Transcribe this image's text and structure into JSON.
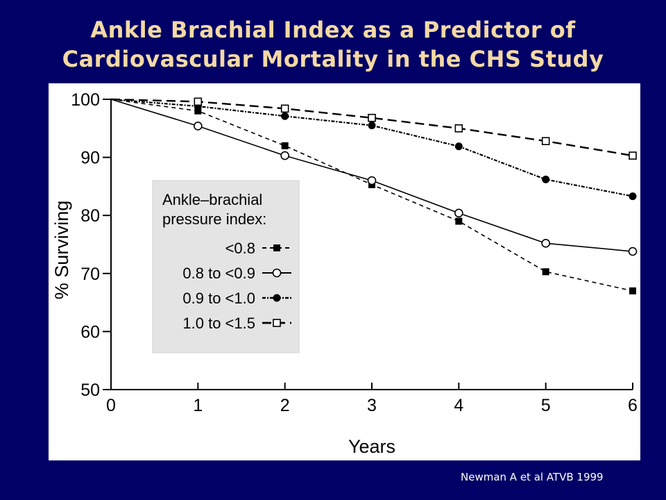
{
  "slide": {
    "title_line1": "Ankle Brachial Index as a Predictor of",
    "title_line2": "Cardiovascular Mortality in the CHS Study",
    "citation": "Newman A et al ATVB 1999",
    "background_color": "#000066",
    "title_color": "#f3d9a4"
  },
  "chart_data": {
    "type": "line",
    "title": "",
    "xlabel": "Years",
    "ylabel": "% Surviving",
    "x": [
      0,
      1,
      2,
      3,
      4,
      5,
      6
    ],
    "x_ticks": [
      "0",
      "1",
      "2",
      "3",
      "4",
      "5",
      "6"
    ],
    "y_ticks": [
      "50",
      "60",
      "70",
      "80",
      "90",
      "100"
    ],
    "xlim": [
      0,
      6
    ],
    "ylim": [
      50,
      100
    ],
    "grid": false,
    "legend_title_line1": "Ankle–brachial",
    "legend_title_line2": "pressure index:",
    "legend_placement": "center-left",
    "series": [
      {
        "name": "<0.8",
        "marker": "filled-square",
        "line": "short-dash",
        "values": [
          100,
          98,
          92,
          85.3,
          79,
          70.3,
          67
        ]
      },
      {
        "name": "0.8 to <0.9",
        "marker": "open-circle",
        "line": "solid",
        "values": [
          100,
          95.4,
          90.3,
          86,
          80.4,
          75.2,
          73.8
        ]
      },
      {
        "name": "0.9 to <1.0",
        "marker": "filled-circle",
        "line": "dotted-dash",
        "values": [
          100,
          98.8,
          97.1,
          95.5,
          91.9,
          86.2,
          83.3
        ]
      },
      {
        "name": "1.0 to <1.5",
        "marker": "open-square",
        "line": "long-dash",
        "values": [
          100,
          99.6,
          98.4,
          96.8,
          95,
          92.8,
          90.3
        ]
      }
    ]
  }
}
